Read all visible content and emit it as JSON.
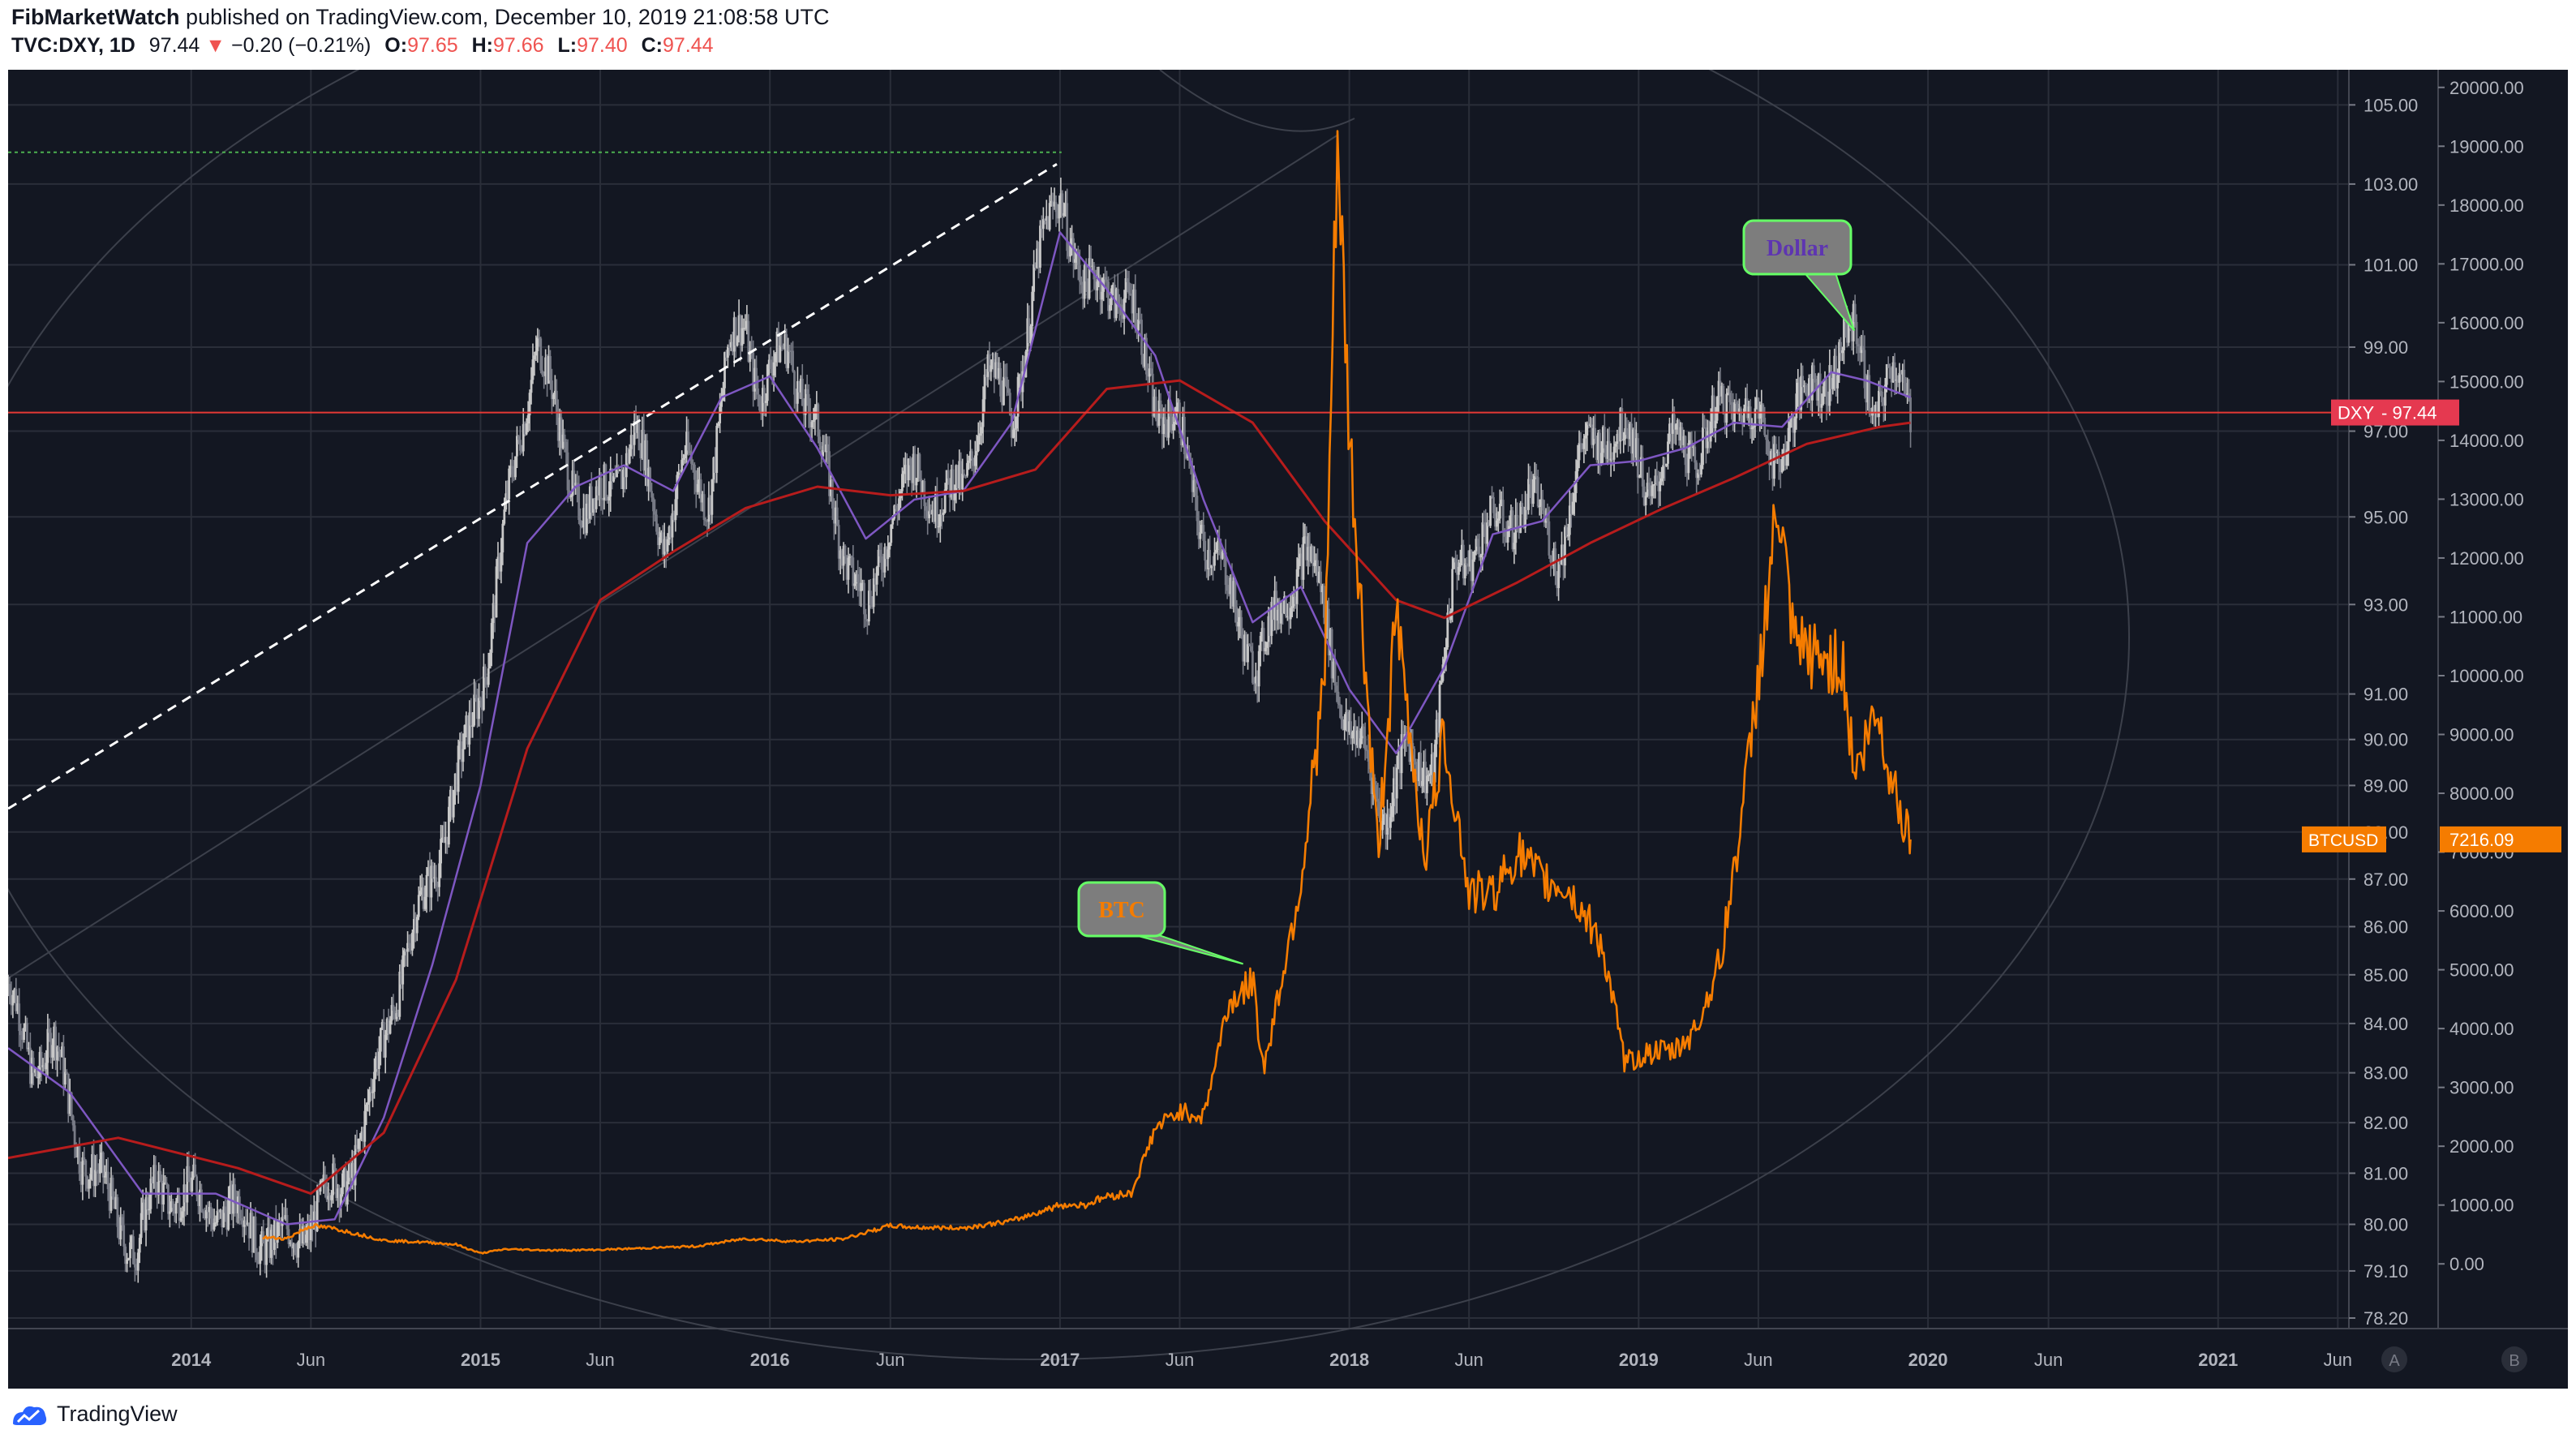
{
  "header": {
    "author": "FibMarketWatch",
    "published_text": "published on TradingView.com, December 10, 2019 21:08:58 UTC",
    "symbol": "TVC:DXY, 1D",
    "last": "97.44",
    "change_arrow": "▼",
    "change": "−0.20 (−0.21%)",
    "o_label": "O:",
    "o_value": "97.65",
    "h_label": "H:",
    "h_value": "97.66",
    "l_label": "L:",
    "l_value": "97.40",
    "c_label": "C:",
    "c_value": "97.44"
  },
  "footer": {
    "brand": "TradingView",
    "logo_icon": "tradingview-logo-icon"
  },
  "colors": {
    "background": "#131722",
    "btc": "#f57c00",
    "dxy_up": "#c8c8c8",
    "dxy_down": "#787b86",
    "ma_long": "#b71c1c",
    "ma_short": "#7e57c2",
    "price_line": "#e53935",
    "callout_fill": "#7d7d7d",
    "callout_border": "#66ff66"
  },
  "chart_data": {
    "type": "line",
    "x_axis": {
      "ticks": [
        "2014",
        "Jun",
        "2015",
        "Jun",
        "2016",
        "Jun",
        "2017",
        "Jun",
        "2018",
        "Jun",
        "2019",
        "Jun",
        "2020",
        "Jun",
        "2021",
        "Jun"
      ],
      "tick_dates": [
        "2014-01-01",
        "2014-06-01",
        "2015-01-01",
        "2015-06-01",
        "2016-01-01",
        "2016-06-01",
        "2017-01-01",
        "2017-06-01",
        "2018-01-01",
        "2018-06-01",
        "2019-01-01",
        "2019-06-01",
        "2020-01-01",
        "2020-06-01",
        "2021-01-01",
        "2021-06-01"
      ],
      "range": [
        "2013-05-15",
        "2021-06-15"
      ]
    },
    "dxy_axis": {
      "ticks": [
        "105.00",
        "103.00",
        "101.00",
        "99.00",
        "97.00",
        "95.00",
        "93.00",
        "91.00",
        "90.00",
        "89.00",
        "88.00",
        "87.00",
        "86.00",
        "85.00",
        "84.00",
        "83.00",
        "82.00",
        "81.00",
        "80.00",
        "79.10",
        "78.20"
      ],
      "scale": "log"
    },
    "btc_axis": {
      "ticks": [
        "20000.00",
        "19000.00",
        "18000.00",
        "17000.00",
        "16000.00",
        "15000.00",
        "14000.00",
        "13000.00",
        "12000.00",
        "11000.00",
        "10000.00",
        "9000.00",
        "8000.00",
        "7000.00",
        "6000.00",
        "5000.00",
        "4000.00",
        "3000.00",
        "2000.00",
        "1000.00",
        "0.00"
      ],
      "range": [
        -1100,
        20300
      ]
    },
    "series": [
      {
        "name": "DXY",
        "style": "candles",
        "x": [
          "2013-05-15",
          "2013-06-15",
          "2013-07-10",
          "2013-08-15",
          "2013-09-20",
          "2013-10-25",
          "2013-11-20",
          "2014-01-01",
          "2014-02-15",
          "2014-03-15",
          "2014-04-20",
          "2014-05-10",
          "2014-06-15",
          "2014-07-10",
          "2014-08-10",
          "2014-09-10",
          "2014-10-10",
          "2014-11-10",
          "2014-12-10",
          "2015-01-10",
          "2015-02-01",
          "2015-03-13",
          "2015-04-10",
          "2015-05-15",
          "2015-06-15",
          "2015-07-15",
          "2015-08-20",
          "2015-09-15",
          "2015-10-15",
          "2015-11-10",
          "2015-12-01",
          "2015-12-20",
          "2016-01-25",
          "2016-02-25",
          "2016-03-25",
          "2016-05-03",
          "2016-06-01",
          "2016-07-01",
          "2016-08-01",
          "2016-09-01",
          "2016-10-01",
          "2016-11-01",
          "2016-12-01",
          "2017-01-03",
          "2017-02-01",
          "2017-03-01",
          "2017-04-01",
          "2017-05-01",
          "2017-06-01",
          "2017-07-01",
          "2017-08-01",
          "2017-09-08",
          "2017-10-15",
          "2017-11-05",
          "2017-12-01",
          "2018-01-01",
          "2018-01-25",
          "2018-02-16",
          "2018-03-15",
          "2018-04-17",
          "2018-05-15",
          "2018-06-15",
          "2018-07-15",
          "2018-08-15",
          "2018-09-20",
          "2018-10-20",
          "2018-11-15",
          "2018-12-15",
          "2019-01-15",
          "2019-02-15",
          "2019-03-15",
          "2019-04-15",
          "2019-05-15",
          "2019-06-20",
          "2019-07-15",
          "2019-08-15",
          "2019-09-15",
          "2019-10-01",
          "2019-10-25",
          "2019-11-15",
          "2019-12-10"
        ],
        "close": [
          84.6,
          83.2,
          83.6,
          81.5,
          80.4,
          79.5,
          80.8,
          80.5,
          80.3,
          80.0,
          79.6,
          79.7,
          80.4,
          80.8,
          82.0,
          84.4,
          85.9,
          87.7,
          89.5,
          92.0,
          94.8,
          99.3,
          96.9,
          95.0,
          95.8,
          96.9,
          94.5,
          96.2,
          95.5,
          98.8,
          99.6,
          97.9,
          99.0,
          97.2,
          95.0,
          92.6,
          95.2,
          95.9,
          95.5,
          95.5,
          98.5,
          97.2,
          100.8,
          102.9,
          100.2,
          100.7,
          99.9,
          97.8,
          96.9,
          94.7,
          93.3,
          91.6,
          93.4,
          94.2,
          92.9,
          90.0,
          89.5,
          88.4,
          89.7,
          89.5,
          93.8,
          94.6,
          94.8,
          95.5,
          94.1,
          96.3,
          97.0,
          96.9,
          95.7,
          96.6,
          96.6,
          97.4,
          97.9,
          96.2,
          97.5,
          98.0,
          99.0,
          99.2,
          97.6,
          98.3,
          97.44
        ],
        "last": 97.44,
        "price_line_value": 97.44
      },
      {
        "name": "BTCUSD",
        "style": "line",
        "x": [
          "2014-04-01",
          "2014-05-01",
          "2014-06-01",
          "2014-07-01",
          "2014-08-01",
          "2014-09-01",
          "2014-10-01",
          "2014-11-01",
          "2014-12-01",
          "2015-01-01",
          "2015-02-01",
          "2015-04-01",
          "2015-06-01",
          "2015-08-01",
          "2015-10-01",
          "2015-12-01",
          "2016-02-01",
          "2016-04-01",
          "2016-06-01",
          "2016-07-01",
          "2016-09-01",
          "2016-11-01",
          "2017-01-01",
          "2017-02-01",
          "2017-03-01",
          "2017-04-01",
          "2017-05-01",
          "2017-06-01",
          "2017-07-01",
          "2017-08-01",
          "2017-09-01",
          "2017-09-15",
          "2017-10-01",
          "2017-11-01",
          "2017-12-01",
          "2017-12-17",
          "2018-01-01",
          "2018-02-06",
          "2018-03-01",
          "2018-04-06",
          "2018-05-01",
          "2018-06-01",
          "2018-07-01",
          "2018-08-01",
          "2018-09-01",
          "2018-10-01",
          "2018-11-14",
          "2018-12-15",
          "2019-01-15",
          "2019-02-15",
          "2019-03-15",
          "2019-04-15",
          "2019-05-15",
          "2019-06-26",
          "2019-07-15",
          "2019-08-15",
          "2019-09-15",
          "2019-10-01",
          "2019-10-28",
          "2019-11-15",
          "2019-12-10"
        ],
        "y": [
          450,
          430,
          650,
          600,
          500,
          400,
          380,
          360,
          330,
          180,
          250,
          230,
          240,
          270,
          300,
          430,
          380,
          420,
          650,
          620,
          610,
          730,
          1000,
          1000,
          1150,
          1200,
          2300,
          2600,
          2500,
          4400,
          4800,
          3300,
          4400,
          6500,
          10000,
          19000,
          14000,
          7000,
          11000,
          6900,
          9000,
          6300,
          6300,
          7000,
          6500,
          6400,
          5500,
          3400,
          3600,
          3600,
          4000,
          5200,
          8000,
          12900,
          10500,
          10300,
          10200,
          8300,
          9400,
          8300,
          7216.09
        ],
        "last": "7216.09"
      },
      {
        "name": "MA long (red)",
        "style": "line",
        "x": [
          "2013-05-15",
          "2013-10-01",
          "2014-03-01",
          "2014-06-01",
          "2014-09-01",
          "2014-12-01",
          "2015-03-01",
          "2015-06-01",
          "2015-09-01",
          "2015-12-01",
          "2016-03-01",
          "2016-06-01",
          "2016-09-01",
          "2016-12-01",
          "2017-03-01",
          "2017-06-01",
          "2017-09-01",
          "2017-12-01",
          "2018-03-01",
          "2018-05-01",
          "2018-08-01",
          "2018-11-01",
          "2019-02-01",
          "2019-05-01",
          "2019-08-01",
          "2019-11-01",
          "2019-12-10"
        ],
        "y": [
          81.3,
          81.7,
          81.1,
          80.6,
          81.8,
          84.9,
          89.8,
          93.1,
          94.2,
          95.2,
          95.7,
          95.5,
          95.6,
          96.1,
          98.0,
          98.2,
          97.2,
          94.9,
          93.1,
          92.7,
          93.5,
          94.4,
          95.2,
          95.9,
          96.7,
          97.1,
          97.2
        ]
      },
      {
        "name": "MA short (purple)",
        "style": "line",
        "x": [
          "2013-05-15",
          "2013-08-01",
          "2013-11-01",
          "2014-02-01",
          "2014-05-01",
          "2014-07-01",
          "2014-09-01",
          "2014-11-01",
          "2015-01-01",
          "2015-03-01",
          "2015-05-01",
          "2015-07-01",
          "2015-09-01",
          "2015-11-01",
          "2016-01-01",
          "2016-03-01",
          "2016-05-01",
          "2016-07-01",
          "2016-09-01",
          "2016-11-01",
          "2017-01-01",
          "2017-03-01",
          "2017-05-01",
          "2017-07-01",
          "2017-09-01",
          "2017-11-01",
          "2018-01-01",
          "2018-03-01",
          "2018-05-01",
          "2018-07-01",
          "2018-09-01",
          "2018-11-01",
          "2019-01-01",
          "2019-03-01",
          "2019-05-01",
          "2019-07-01",
          "2019-09-01",
          "2019-10-15",
          "2019-12-10"
        ],
        "y": [
          83.5,
          82.6,
          80.6,
          80.6,
          80.0,
          80.1,
          82.1,
          85.2,
          89.0,
          94.4,
          95.7,
          96.2,
          95.6,
          97.8,
          98.3,
          96.6,
          94.5,
          95.4,
          95.6,
          97.2,
          101.8,
          100.4,
          98.8,
          95.4,
          92.6,
          93.4,
          91.1,
          89.7,
          91.6,
          94.6,
          94.9,
          96.2,
          96.3,
          96.6,
          97.2,
          97.1,
          98.4,
          98.2,
          97.8
        ]
      },
      {
        "name": "DXY trend (dashed)",
        "style": "dashed",
        "x": [
          "2013-05-15",
          "2016-12-28"
        ],
        "y": [
          88.5,
          103.5
        ]
      },
      {
        "name": "DXY 2017 high (dotted)",
        "style": "dotted",
        "x": [
          "2013-05-15",
          "2017-01-03"
        ],
        "y": [
          103.8,
          103.8
        ]
      }
    ],
    "annotations": [
      {
        "text": "Dollar",
        "anchor_x": "2019-09-30",
        "anchor_y": 99.4
      },
      {
        "text": "BTC",
        "anchor_series": "BTCUSD",
        "anchor_x": "2017-08-20",
        "anchor_y": 5100
      }
    ],
    "price_labels": [
      {
        "series": "DXY",
        "text": "DXY",
        "value_text": "97.44"
      },
      {
        "series": "BTCUSD",
        "text": "BTCUSD",
        "value_text": "7216.09"
      }
    ],
    "scale_buttons": [
      "A",
      "B"
    ],
    "grid": true,
    "title": "",
    "xlabel": "",
    "ylabel": ""
  }
}
